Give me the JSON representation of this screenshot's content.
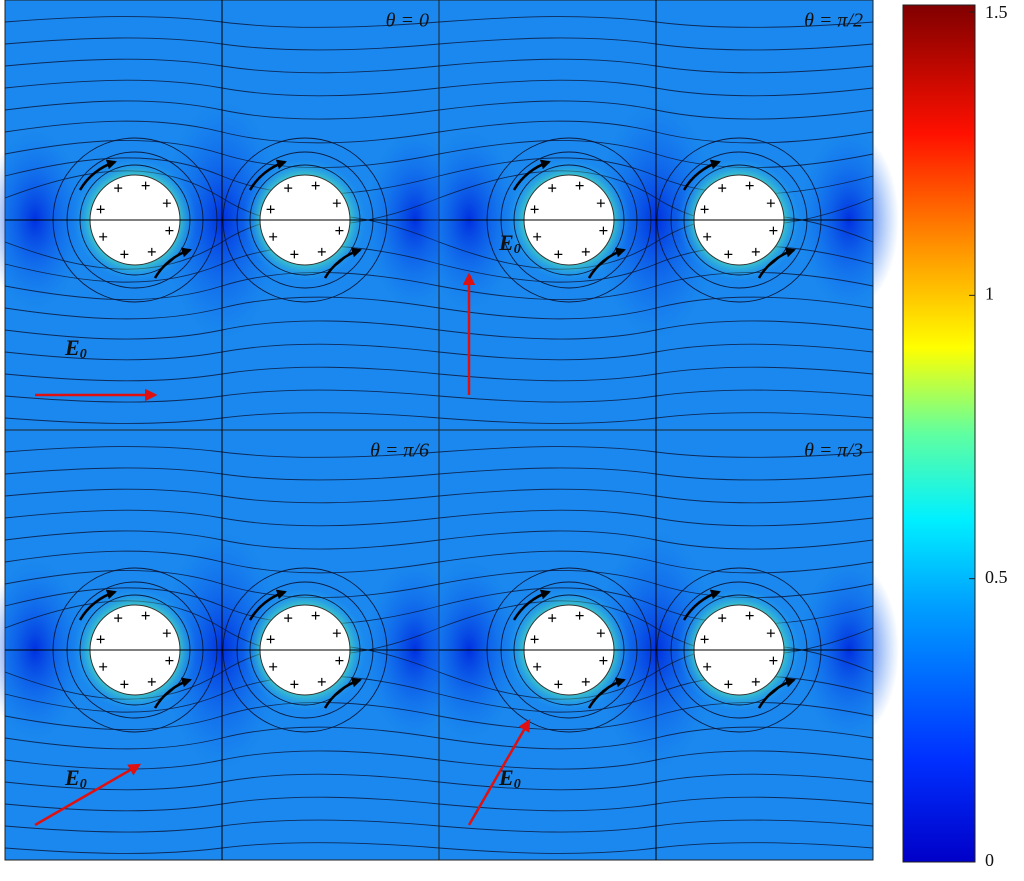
{
  "panels": [
    {
      "label": "θ = 0",
      "field": {
        "symbol": "E",
        "subscript": "0"
      }
    },
    {
      "label": "θ = π/2",
      "field": {
        "symbol": "E",
        "subscript": "0"
      }
    },
    {
      "label": "θ = π/6",
      "field": {
        "symbol": "E",
        "subscript": "0"
      }
    },
    {
      "label": "θ = π/3",
      "field": {
        "symbol": "E",
        "subscript": "0"
      }
    }
  ],
  "colorbar": {
    "lim": [
      0,
      1.5
    ],
    "ticks": [
      0,
      0.5,
      1,
      1.5
    ]
  }
}
